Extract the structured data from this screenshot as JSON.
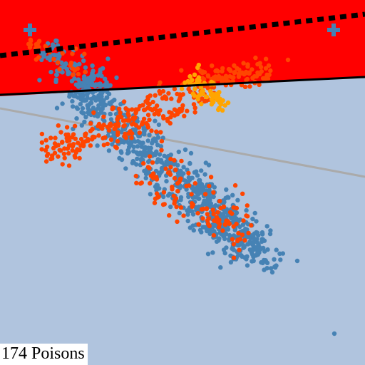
{
  "counter": {
    "value": 174,
    "label": "174 Poisons"
  },
  "colors": {
    "background": "#b0c4de",
    "attack_region": "#ff0000",
    "boundary": "#000000",
    "reference_line": "#aaaaaa",
    "clean_points": "#4682b4",
    "poison_points": "#ff4500",
    "hot_points": "#ffa500",
    "targets": "#4682b4"
  },
  "icons": {
    "target": "plus-icon"
  },
  "legend": []
}
